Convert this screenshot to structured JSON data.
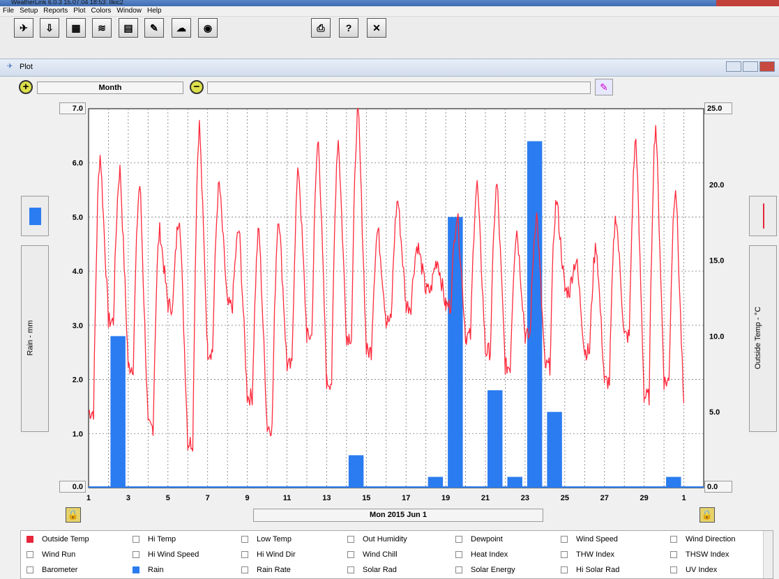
{
  "window": {
    "title": "WeatherLink 6.0.3  15.07.04  18:53: Ilkic2"
  },
  "menu": [
    "File",
    "Setup",
    "Reports",
    "Plot",
    "Colors",
    "Window",
    "Help"
  ],
  "toolbar": {
    "icons": [
      "station-icon",
      "download-icon",
      "bulletin-icon",
      "strip-chart-icon",
      "summary-icon",
      "notes-icon",
      "weather-icon",
      "noaa-icon",
      "print-icon",
      "help-icon",
      "close-icon"
    ],
    "help_label": "?",
    "close_label": "✕"
  },
  "plot_window": {
    "title": "Plot",
    "period": "Month",
    "date_label": "Mon 2015 Jun 1",
    "left_axis_label": "Rain - mm",
    "right_axis_label": "Outside Temp - °C",
    "left_top": "7.0",
    "left_bottom": "0.0",
    "right_top": "25.0",
    "right_bottom": "0.0"
  },
  "chart_data": {
    "type": "bar",
    "x_ticks": [
      "1",
      "3",
      "5",
      "7",
      "9",
      "11",
      "13",
      "15",
      "17",
      "19",
      "21",
      "23",
      "25",
      "27",
      "29",
      "1"
    ],
    "left_y_ticks": [
      "6.0",
      "5.0",
      "4.0",
      "3.0",
      "2.0",
      "1.0"
    ],
    "right_y_ticks": [
      "20.0",
      "15.0",
      "10.0",
      "5.0"
    ],
    "ylim_left": [
      0,
      7
    ],
    "ylim_right": [
      0,
      25
    ],
    "grid": true,
    "series": [
      {
        "name": "Rain",
        "axis": "left",
        "color": "#2a7cf0",
        "days": [
          2,
          14,
          18,
          19,
          21,
          22,
          23,
          24,
          30
        ],
        "values": [
          2.8,
          0.6,
          0.2,
          5.0,
          1.8,
          0.2,
          6.4,
          1.4,
          0.2
        ]
      },
      {
        "name": "Outside Temp",
        "axis": "right",
        "color": "#ff2a3c",
        "daily_min": [
          5,
          11,
          8,
          4,
          12,
          3,
          9,
          12,
          6,
          4,
          8,
          10,
          7,
          10,
          9,
          11,
          12,
          13,
          12,
          10,
          9,
          8,
          10,
          8,
          13,
          9,
          7,
          10,
          6,
          7
        ],
        "daily_max": [
          22,
          21,
          20,
          17,
          18,
          24,
          20,
          17,
          17,
          18,
          21,
          23,
          23,
          25,
          17,
          19,
          16,
          15,
          18,
          20,
          20,
          17,
          18,
          19,
          15,
          16,
          18,
          23,
          24,
          20
        ]
      }
    ]
  },
  "legend": [
    [
      "Outside Temp",
      "Hi Temp",
      "Low Temp",
      "Out Humidity",
      "Dewpoint",
      "Wind Speed",
      "Wind Direction"
    ],
    [
      "Wind Run",
      "Hi Wind Speed",
      "Hi Wind Dir",
      "Wind Chill",
      "Heat Index",
      "THW Index",
      "THSW Index"
    ],
    [
      "Barometer",
      "Rain",
      "Rain Rate",
      "Solar Rad",
      "Solar Energy",
      "Hi Solar Rad",
      "UV Index"
    ]
  ],
  "legend_checked": {
    "Outside Temp": "#e8263a",
    "Rain": "#2a7cf0"
  }
}
